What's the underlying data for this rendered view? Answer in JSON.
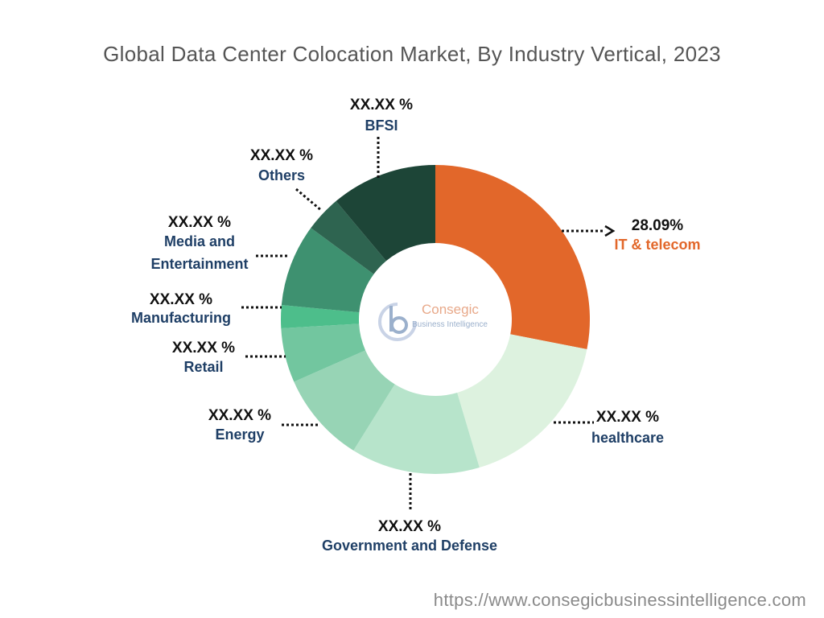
{
  "chart_data": {
    "type": "pie",
    "subtype": "donut",
    "title": "Global Data Center Colocation Market, By Industry Vertical, 2023",
    "slices": [
      {
        "label": "IT & telecom",
        "value": 28.09,
        "display": "28.09%",
        "color": "#E2672A"
      },
      {
        "label": "healthcare",
        "value": 17.3,
        "display": "XX.XX %",
        "color": "#DDF2DF"
      },
      {
        "label": "Government and Defense",
        "value": 13.5,
        "display": "XX.XX %",
        "color": "#B7E4CB"
      },
      {
        "label": "Energy",
        "value": 9.5,
        "display": "XX.XX %",
        "color": "#97D4B5"
      },
      {
        "label": "Retail",
        "value": 5.7,
        "display": "XX.XX %",
        "color": "#72C69F"
      },
      {
        "label": "Manufacturing",
        "value": 2.4,
        "display": "XX.XX %",
        "color": "#4DBE8B"
      },
      {
        "label": "Media and Entertainment",
        "label_lines": [
          "Media and",
          "Entertainment"
        ],
        "value": 8.6,
        "display": "XX.XX %",
        "color": "#3E9170"
      },
      {
        "label": "Others",
        "value": 3.8,
        "display": "XX.XX %",
        "color": "#2E6450"
      },
      {
        "label": "BFSI",
        "value": 11.11,
        "display": "XX.XX %",
        "color": "#1D4537"
      }
    ],
    "legend": "none"
  },
  "logo": {
    "name": "Consegic",
    "tagline": "Business Intelligence"
  },
  "footer": {
    "url": "https://www.consegicbusinessintelligence.com"
  }
}
